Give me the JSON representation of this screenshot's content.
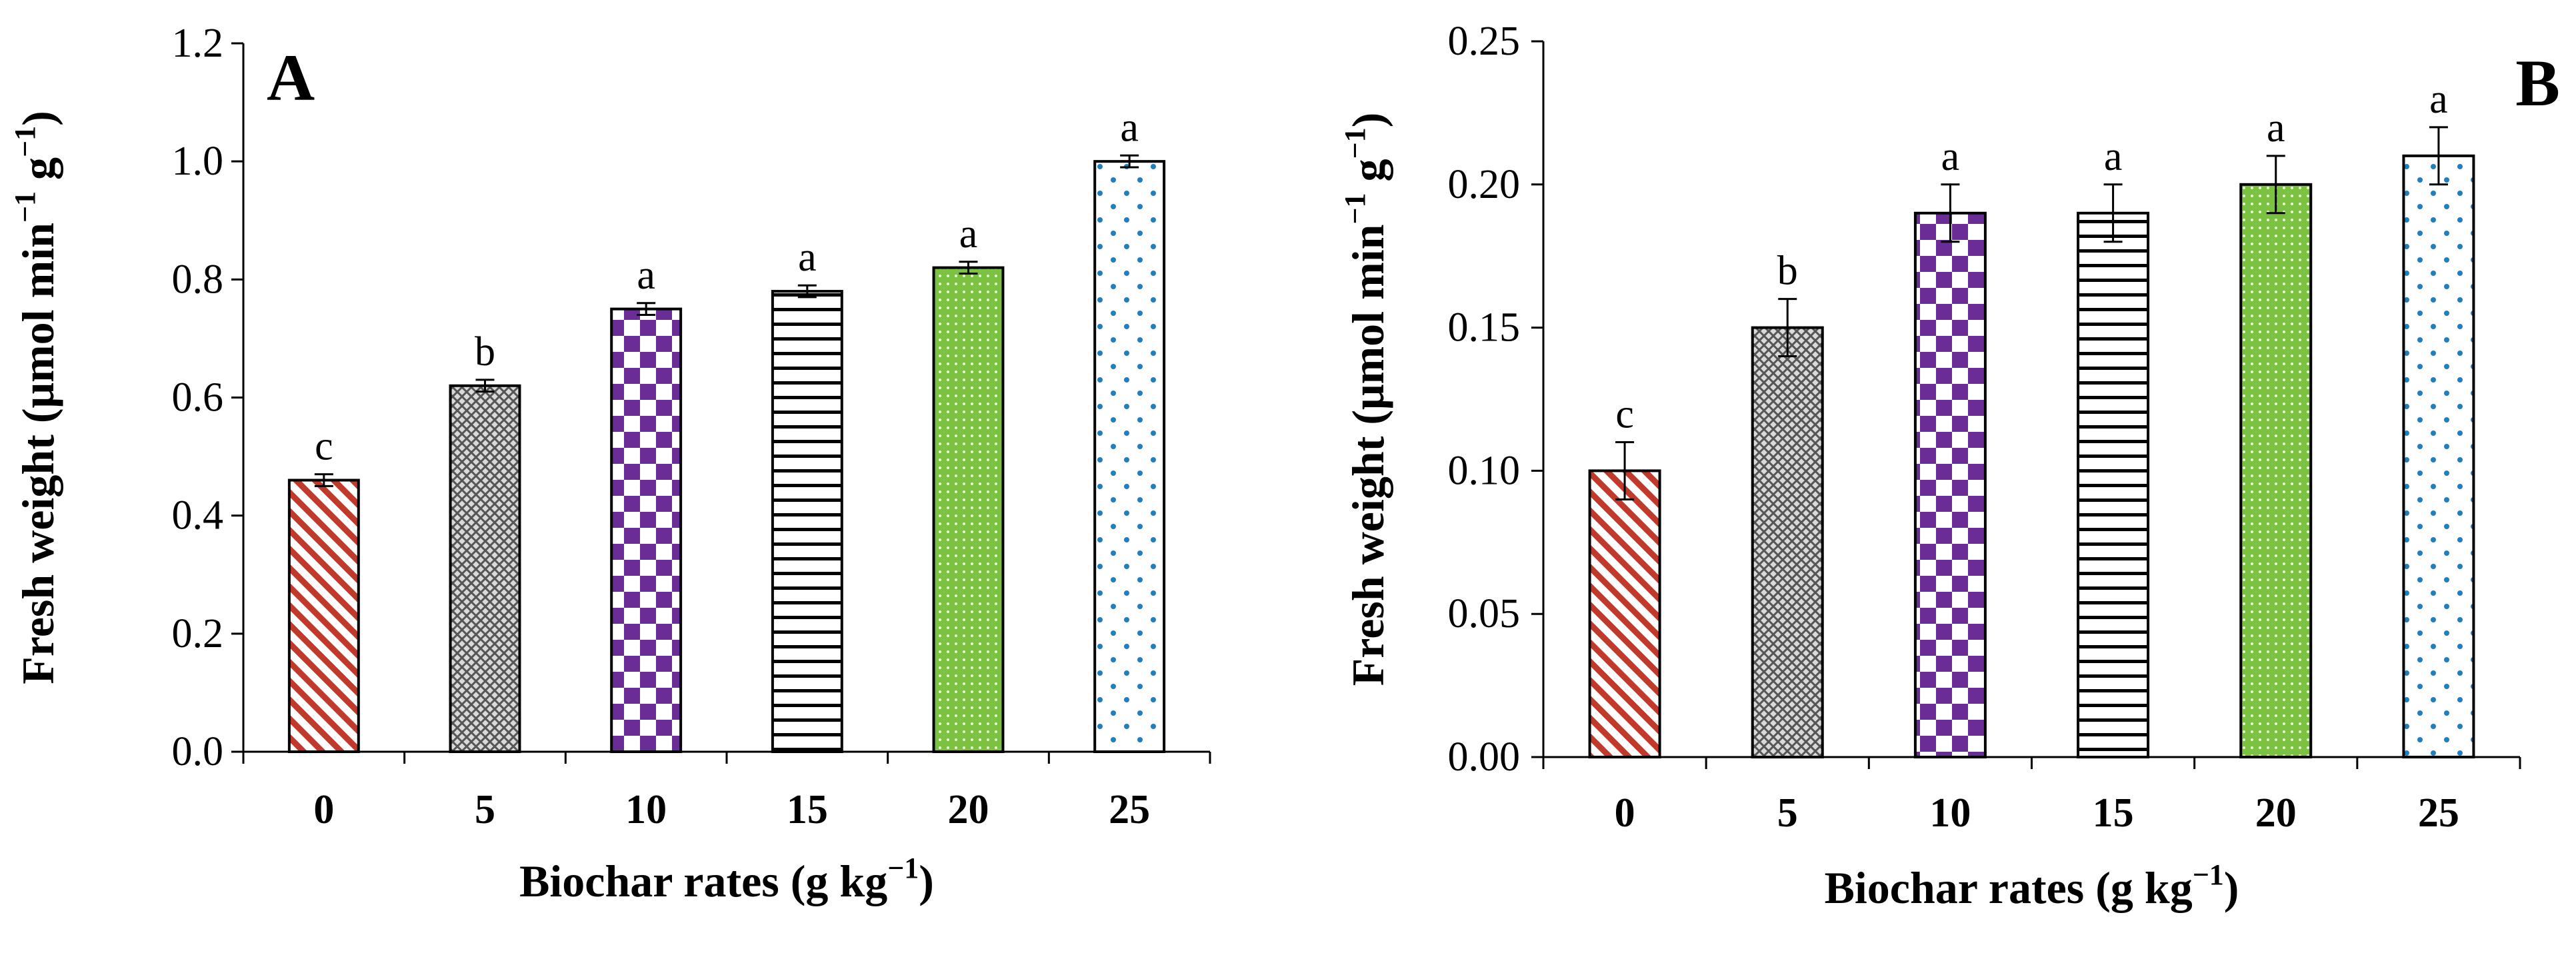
{
  "chart_data": [
    {
      "type": "bar",
      "panel": "A",
      "categories": [
        "0",
        "5",
        "10",
        "15",
        "20",
        "25"
      ],
      "values": [
        0.46,
        0.62,
        0.75,
        0.78,
        0.82,
        1.0
      ],
      "errors": [
        0.01,
        0.01,
        0.01,
        0.01,
        0.01,
        0.01
      ],
      "letters": [
        "c",
        "b",
        "a",
        "a",
        "a",
        "a"
      ],
      "ylim": [
        0,
        1.2
      ],
      "yticks": [
        "0.0",
        "0.2",
        "0.4",
        "0.6",
        "0.8",
        "1.0",
        "1.2"
      ],
      "ylabel": {
        "main": "Fresh weight (μmol min",
        "sup1": "−1",
        "mid": " g",
        "sup2": "−1",
        "end": ")"
      },
      "xlabel": {
        "main": "Biochar rates (g kg",
        "sup": "−1",
        "end": ")"
      }
    },
    {
      "type": "bar",
      "panel": "B",
      "categories": [
        "0",
        "5",
        "10",
        "15",
        "20",
        "25"
      ],
      "values": [
        0.1,
        0.15,
        0.19,
        0.19,
        0.2,
        0.21
      ],
      "errors": [
        0.01,
        0.01,
        0.01,
        0.01,
        0.01,
        0.01
      ],
      "letters": [
        "c",
        "b",
        "a",
        "a",
        "a",
        "a"
      ],
      "ylim": [
        0,
        0.25
      ],
      "yticks": [
        "0.00",
        "0.05",
        "0.10",
        "0.15",
        "0.20",
        "0.25"
      ],
      "ylabel": {
        "main": "Fresh weight (μmol min",
        "sup1": "−1",
        "mid": " g",
        "sup2": "−1",
        "end": ")"
      },
      "xlabel": {
        "main": "Biochar rates (g kg",
        "sup": "−1",
        "end": ")"
      }
    }
  ],
  "bar_patterns": [
    "red-diagonal-stripes",
    "gray-crosshatch",
    "purple-checkerboard",
    "black-horizontal-lines",
    "green-dotted",
    "blue-dotted-white"
  ],
  "colors": {
    "red": "#c0392b",
    "gray": "#707070",
    "purple": "#6a2d96",
    "green": "#7cc242",
    "blue": "#1f7fbf",
    "black": "#000000"
  }
}
